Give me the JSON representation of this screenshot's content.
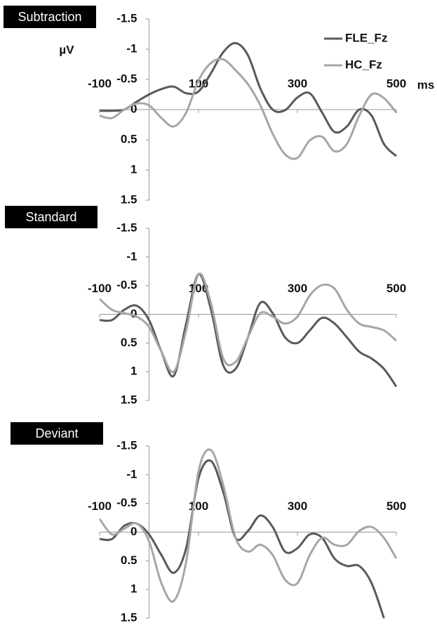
{
  "chart_data": [
    {
      "type": "line",
      "title": "Subtraction",
      "xlabel": "ms",
      "ylabel": "µV",
      "legend": "top-right",
      "x": [
        -100,
        -75,
        -50,
        -25,
        0,
        25,
        50,
        75,
        100,
        125,
        150,
        175,
        200,
        225,
        250,
        275,
        300,
        325,
        350,
        375,
        400,
        425,
        450,
        475,
        500
      ],
      "series": [
        {
          "name": "FLE_Fz",
          "color": "#595959",
          "values": [
            0.02,
            0.02,
            0,
            -0.13,
            -0.25,
            -0.34,
            -0.38,
            -0.27,
            -0.3,
            -0.6,
            -0.95,
            -1.1,
            -0.9,
            -0.35,
            0,
            0.01,
            -0.2,
            -0.27,
            0.05,
            0.37,
            0.28,
            0,
            0.1,
            0.57,
            0.77
          ]
        },
        {
          "name": "HC_Fz",
          "color": "#a6a6a6",
          "values": [
            0.1,
            0.14,
            0,
            -0.1,
            -0.07,
            0.14,
            0.28,
            0.05,
            -0.48,
            -0.77,
            -0.83,
            -0.65,
            -0.42,
            -0.07,
            0.4,
            0.74,
            0.8,
            0.51,
            0.45,
            0.69,
            0.57,
            0.1,
            -0.25,
            -0.19,
            0.05
          ]
        }
      ],
      "xlim": [
        -100,
        500
      ],
      "xticks": [
        -100,
        100,
        300,
        500
      ],
      "ylim": [
        1.5,
        -1.5
      ],
      "yticks": [
        -1.5,
        -1,
        -0.5,
        0,
        0.5,
        1,
        1.5
      ]
    },
    {
      "type": "line",
      "title": "Standard",
      "x": [
        -100,
        -75,
        -50,
        -25,
        0,
        25,
        50,
        75,
        100,
        125,
        150,
        175,
        200,
        225,
        250,
        275,
        300,
        325,
        350,
        375,
        400,
        425,
        450,
        475,
        500
      ],
      "series": [
        {
          "name": "FLE_Fz",
          "color": "#595959",
          "values": [
            0.1,
            0.1,
            -0.08,
            -0.15,
            0.1,
            0.65,
            1.07,
            0.16,
            -0.7,
            -0.09,
            0.89,
            0.95,
            0.4,
            -0.2,
            -0.02,
            0.4,
            0.5,
            0.28,
            0.06,
            0.16,
            0.4,
            0.65,
            0.77,
            0.95,
            1.26
          ]
        },
        {
          "name": "HC_Fz",
          "color": "#a6a6a6",
          "values": [
            -0.27,
            -0.08,
            -0.02,
            0.04,
            0.22,
            0.65,
            1.0,
            0.28,
            -0.7,
            -0.2,
            0.77,
            0.83,
            0.4,
            -0.02,
            0.04,
            0.16,
            0.04,
            -0.33,
            -0.51,
            -0.45,
            -0.08,
            0.16,
            0.22,
            0.28,
            0.46
          ]
        }
      ],
      "xlim": [
        -100,
        500
      ],
      "xticks": [
        -100,
        100,
        300,
        500
      ],
      "ylim": [
        1.5,
        -1.5
      ],
      "yticks": [
        -1.5,
        -1,
        -0.5,
        0,
        0.5,
        1,
        1.5
      ]
    },
    {
      "type": "line",
      "title": "Deviant",
      "x": [
        -100,
        -75,
        -50,
        -25,
        0,
        25,
        50,
        75,
        100,
        125,
        150,
        175,
        200,
        225,
        250,
        275,
        300,
        325,
        350,
        375,
        400,
        425,
        450,
        475,
        500
      ],
      "series": [
        {
          "name": "FLE_Fz",
          "color": "#595959",
          "values": [
            0.12,
            0.12,
            -0.11,
            -0.15,
            0.04,
            0.4,
            0.71,
            0.28,
            -0.94,
            -1.24,
            -0.7,
            0.1,
            -0.02,
            -0.29,
            -0.09,
            0.34,
            0.28,
            0.04,
            0.1,
            0.46,
            0.59,
            0.59,
            0.89,
            1.5,
            null
          ]
        },
        {
          "name": "HC_Fz",
          "color": "#a6a6a6",
          "values": [
            -0.23,
            0.04,
            -0.06,
            -0.15,
            0.16,
            0.89,
            1.2,
            0.52,
            -1.06,
            -1.43,
            -0.82,
            0.1,
            0.34,
            0.22,
            0.4,
            0.83,
            0.89,
            0.4,
            0.1,
            0.22,
            0.22,
            -0.02,
            -0.09,
            0.1,
            0.46
          ]
        }
      ],
      "xlim": [
        -100,
        500
      ],
      "xticks": [
        -100,
        100,
        300,
        500
      ],
      "ylim": [
        1.5,
        -1.5
      ],
      "yticks": [
        -1.5,
        -1,
        -0.5,
        0,
        0.5,
        1,
        1.5
      ]
    }
  ]
}
